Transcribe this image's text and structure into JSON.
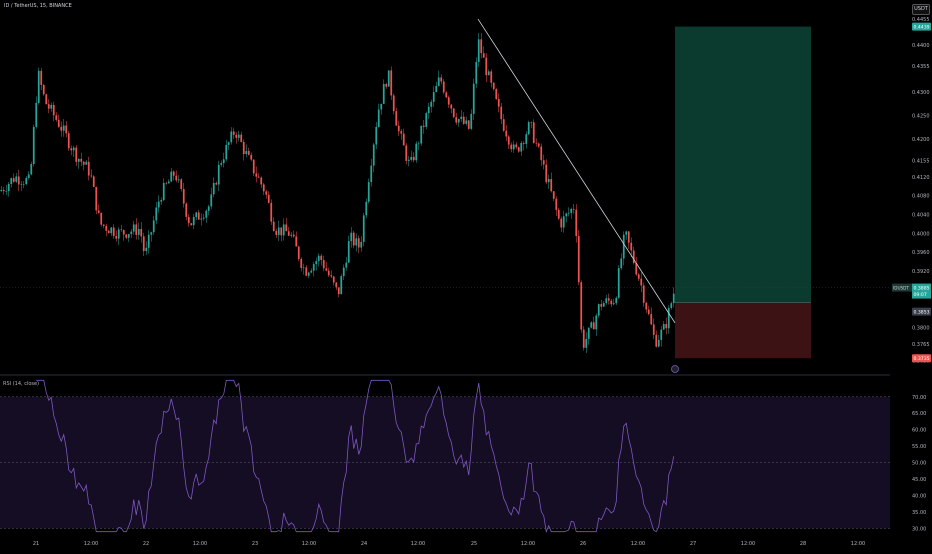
{
  "header": {
    "symbol_line": "ID / TetherUS, 15, BINANCE",
    "currency": "USDT"
  },
  "rsi": {
    "title": "RSI (14, close)",
    "levels": [
      70,
      50,
      30
    ],
    "ylim": [
      28,
      76
    ],
    "color": "#7e57c2"
  },
  "position": {
    "target_label": "0.4439",
    "stop_label": "0.3735",
    "entry": 0.3853,
    "current": {
      "price": 0.3885,
      "ticker": "IDUSDT",
      "timer": "09:07"
    },
    "entry_label": "0.3853",
    "profit_color": "#0b3b2f",
    "loss_color": "#3c1215"
  },
  "colors": {
    "up": "#26a69a",
    "down": "#ef5350",
    "trendline": "#d1d4dc"
  },
  "chart_data": {
    "type": "candlestick",
    "ylim": [
      0.371,
      0.447
    ],
    "y_ticks": [
      0.4455,
      0.44,
      0.4355,
      0.43,
      0.425,
      0.42,
      0.4155,
      0.412,
      0.408,
      0.404,
      0.4,
      0.396,
      0.392,
      0.38,
      0.3765,
      0.373
    ],
    "x_ticks": [
      "21",
      "12:00",
      "22",
      "12:00",
      "23",
      "12:00",
      "24",
      "12:00",
      "25",
      "12:00",
      "26",
      "12:00",
      "27",
      "12:00",
      "28",
      "12:00"
    ],
    "anchors": [
      [
        0,
        0.409
      ],
      [
        15,
        0.412
      ],
      [
        30,
        0.411
      ],
      [
        38,
        0.434
      ],
      [
        45,
        0.428
      ],
      [
        60,
        0.423
      ],
      [
        75,
        0.417
      ],
      [
        90,
        0.413
      ],
      [
        100,
        0.402
      ],
      [
        120,
        0.4
      ],
      [
        140,
        0.401
      ],
      [
        145,
        0.395
      ],
      [
        160,
        0.408
      ],
      [
        175,
        0.413
      ],
      [
        190,
        0.402
      ],
      [
        210,
        0.406
      ],
      [
        220,
        0.415
      ],
      [
        235,
        0.422
      ],
      [
        250,
        0.415
      ],
      [
        265,
        0.409
      ],
      [
        275,
        0.401
      ],
      [
        290,
        0.4
      ],
      [
        305,
        0.392
      ],
      [
        320,
        0.395
      ],
      [
        338,
        0.387
      ],
      [
        350,
        0.399
      ],
      [
        360,
        0.397
      ],
      [
        368,
        0.411
      ],
      [
        378,
        0.426
      ],
      [
        388,
        0.434
      ],
      [
        398,
        0.422
      ],
      [
        410,
        0.414
      ],
      [
        425,
        0.424
      ],
      [
        440,
        0.433
      ],
      [
        455,
        0.425
      ],
      [
        470,
        0.422
      ],
      [
        478,
        0.441
      ],
      [
        490,
        0.432
      ],
      [
        500,
        0.425
      ],
      [
        515,
        0.417
      ],
      [
        530,
        0.423
      ],
      [
        545,
        0.413
      ],
      [
        560,
        0.402
      ],
      [
        575,
        0.406
      ],
      [
        582,
        0.376
      ],
      [
        592,
        0.38
      ],
      [
        600,
        0.385
      ],
      [
        615,
        0.386
      ],
      [
        625,
        0.4
      ],
      [
        640,
        0.39
      ],
      [
        655,
        0.377
      ],
      [
        665,
        0.38
      ],
      [
        675,
        0.3885
      ]
    ]
  }
}
